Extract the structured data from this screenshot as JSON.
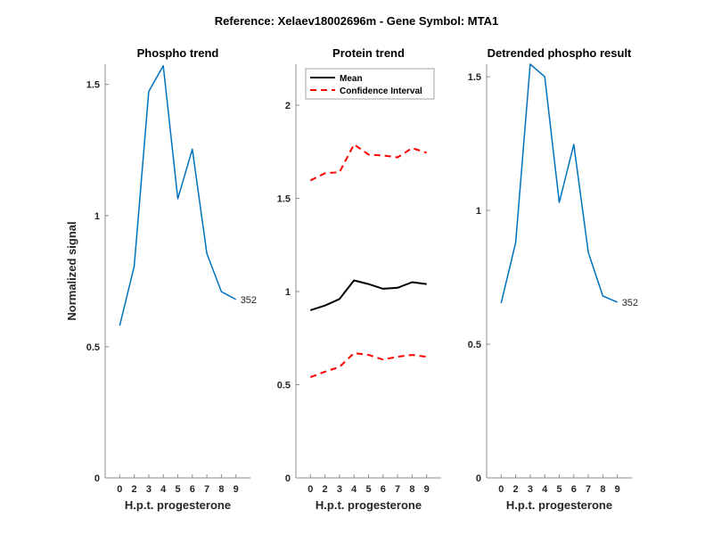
{
  "suptitle": "Reference:  Xelaev18002696m - Gene Symbol:  MTA1",
  "colors": {
    "phospho": "#0072BD",
    "mean": "#000000",
    "ci": "#FF0000",
    "axis": "#8c8c8c"
  },
  "chart_data": [
    {
      "type": "line",
      "title": "Phospho trend",
      "xlabel": "H.p.t. progesterone",
      "ylabel": "Normalized signal",
      "categories": [
        "0",
        "2",
        "3",
        "4",
        "5",
        "6",
        "7",
        "8",
        "9"
      ],
      "xlim": [
        0,
        10
      ],
      "ylim": [
        0,
        1.577
      ],
      "yticks": [
        0,
        0.5,
        1,
        1.5
      ],
      "ytick_labels": [
        "0",
        "0.5",
        "1",
        "1.5"
      ],
      "grid": false,
      "series": [
        {
          "name": "Phospho",
          "color": "#0072BD",
          "style": "solid",
          "values": [
            0.58,
            0.807,
            1.473,
            1.571,
            1.064,
            1.253,
            0.855,
            0.71,
            0.68
          ]
        }
      ],
      "annotations": [
        {
          "text": "352",
          "at_category": "9"
        }
      ]
    },
    {
      "type": "line",
      "title": "Protein trend",
      "xlabel": "H.p.t. progesterone",
      "ylabel": "",
      "categories": [
        "0",
        "2",
        "3",
        "4",
        "5",
        "6",
        "7",
        "8",
        "9"
      ],
      "xlim": [
        0,
        10
      ],
      "ylim": [
        0,
        2.22
      ],
      "yticks": [
        0,
        0.5,
        1,
        1.5,
        2
      ],
      "ytick_labels": [
        "0",
        "0.5",
        "1",
        "1.5",
        "2"
      ],
      "grid": false,
      "legend": {
        "placement": "top-left",
        "entries": [
          "Mean",
          "Confidence Interval"
        ]
      },
      "series": [
        {
          "name": "Mean",
          "color": "#000000",
          "style": "solid",
          "values": [
            0.9,
            0.925,
            0.96,
            1.06,
            1.04,
            1.015,
            1.02,
            1.05,
            1.04
          ]
        },
        {
          "name": "Confidence Interval",
          "color": "#FF0000",
          "style": "dashed",
          "values": [
            1.596,
            1.635,
            1.64,
            1.79,
            1.735,
            1.73,
            1.72,
            1.77,
            1.745
          ]
        },
        {
          "name": "Confidence Interval (lower)",
          "color": "#FF0000",
          "style": "dashed",
          "in_legend": false,
          "values": [
            0.54,
            0.57,
            0.595,
            0.67,
            0.66,
            0.635,
            0.65,
            0.66,
            0.65
          ]
        }
      ]
    },
    {
      "type": "line",
      "title": "Detrended phospho result",
      "xlabel": "H.p.t. progesterone",
      "ylabel": "",
      "categories": [
        "0",
        "2",
        "3",
        "4",
        "5",
        "6",
        "7",
        "8",
        "9"
      ],
      "xlim": [
        0,
        10
      ],
      "ylim": [
        0,
        1.547
      ],
      "yticks": [
        0,
        0.5,
        1,
        1.5
      ],
      "ytick_labels": [
        "0",
        "0.5",
        "1",
        "1.5"
      ],
      "grid": false,
      "series": [
        {
          "name": "Detrended phospho",
          "color": "#0072BD",
          "style": "solid",
          "values": [
            0.653,
            0.88,
            1.547,
            1.5,
            1.03,
            1.247,
            0.843,
            0.68,
            0.657
          ]
        }
      ],
      "annotations": [
        {
          "text": "352",
          "at_category": "9"
        }
      ]
    }
  ]
}
